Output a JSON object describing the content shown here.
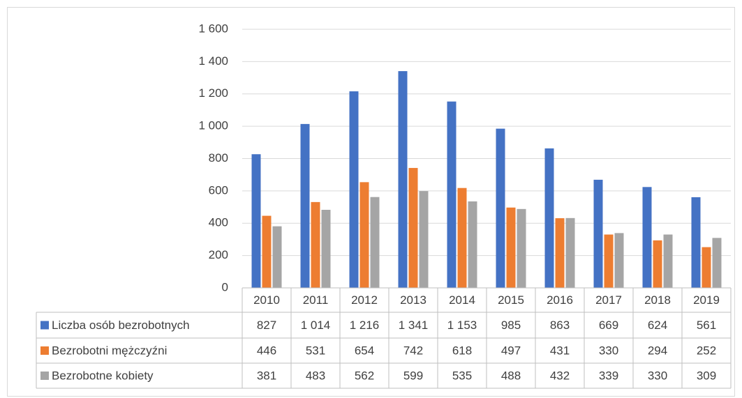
{
  "chart_data": {
    "type": "bar",
    "categories": [
      "2010",
      "2011",
      "2012",
      "2013",
      "2014",
      "2015",
      "2016",
      "2017",
      "2018",
      "2019"
    ],
    "series": [
      {
        "name": "Liczba osób bezrobotnych",
        "color": "#4472c4",
        "values": [
          827,
          1014,
          1216,
          1341,
          1153,
          985,
          863,
          669,
          624,
          561
        ],
        "value_labels": [
          "827",
          "1 014",
          "1 216",
          "1 341",
          "1 153",
          "985",
          "863",
          "669",
          "624",
          "561"
        ]
      },
      {
        "name": "Bezrobotni mężczyźni",
        "color": "#ed7d31",
        "values": [
          446,
          531,
          654,
          742,
          618,
          497,
          431,
          330,
          294,
          252
        ]
      },
      {
        "name": "Bezrobotne kobiety",
        "color": "#a5a5a5",
        "values": [
          381,
          483,
          562,
          599,
          535,
          488,
          432,
          339,
          330,
          309
        ]
      }
    ],
    "ylim": [
      0,
      1600
    ],
    "yticks": [
      0,
      200,
      400,
      600,
      800,
      {
        "value": 1000,
        "label": "1 000"
      },
      {
        "value": 1200,
        "label": "1 200"
      },
      {
        "value": 1400,
        "label": "1 400"
      },
      {
        "value": 1600,
        "label": "1 600"
      }
    ],
    "grid": true
  }
}
